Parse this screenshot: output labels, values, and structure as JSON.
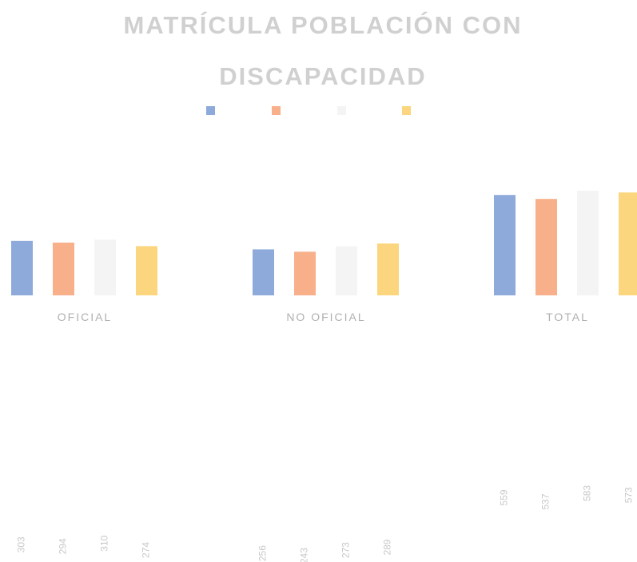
{
  "chart_data": {
    "type": "bar",
    "title": [
      "MATRÍCULA POBLACIÓN CON",
      "DISCAPACIDAD"
    ],
    "categories": [
      "OFICIAL",
      "NO OFICIAL",
      "TOTAL"
    ],
    "series": [
      {
        "color": "#8eaadb",
        "values": [
          303,
          256,
          559
        ]
      },
      {
        "color": "#f8b08a",
        "values": [
          294,
          243,
          537
        ]
      },
      {
        "color": "#f4f4f4",
        "values": [
          310,
          273,
          583
        ]
      },
      {
        "color": "#fcd67e",
        "values": [
          274,
          289,
          573
        ]
      }
    ],
    "ylim": [
      0,
      600
    ]
  }
}
